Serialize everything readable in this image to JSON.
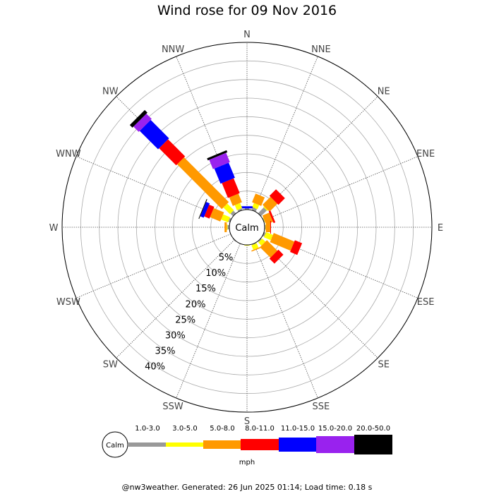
{
  "title": "Wind rose for 09 Nov 2016",
  "footer": "@nw3weather. Generated: 26 Jun 2025 01:14; Load time: 0.18 s",
  "chart_data": {
    "type": "windrose",
    "title": "Wind rose for 09 Nov 2016",
    "directions": [
      "N",
      "NNE",
      "NE",
      "ENE",
      "E",
      "ESE",
      "SE",
      "SSE",
      "S",
      "SSW",
      "SW",
      "WSW",
      "W",
      "WNW",
      "NW",
      "NNW"
    ],
    "radial_ticks": [
      "5%",
      "10%",
      "15%",
      "20%",
      "25%",
      "30%",
      "35%",
      "40%"
    ],
    "radial_max": 45,
    "calm_label": "Calm",
    "speed_unit": "mph",
    "speed_bins": [
      {
        "label": "1.0-3.0",
        "color": "#999999"
      },
      {
        "label": "3.0-5.0",
        "color": "#ffff00"
      },
      {
        "label": "5.0-8.0",
        "color": "#ff9900"
      },
      {
        "label": "8.0-11.0",
        "color": "#ff0000"
      },
      {
        "label": "11.0-15.0",
        "color": "#0000ff"
      },
      {
        "label": "15.0-20.0",
        "color": "#9922ee"
      },
      {
        "label": "20.0-50.0",
        "color": "#000000"
      }
    ],
    "bar_widths": [
      0,
      1,
      2,
      3,
      4,
      5,
      6
    ],
    "series": [
      {
        "direction": "N",
        "cumulative": [
          0.3,
          0.3,
          0.3,
          0.3,
          0.9,
          0.9,
          0.9
        ]
      },
      {
        "direction": "NNE",
        "cumulative": [
          0.8,
          2.0,
          4.5,
          4.5,
          4.5,
          4.5,
          4.5
        ]
      },
      {
        "direction": "NE",
        "cumulative": [
          2.2,
          2.5,
          5.5,
          8.0,
          8.0,
          8.0,
          8.0
        ]
      },
      {
        "direction": "ENE",
        "cumulative": [
          0.2,
          0.3,
          2.3,
          2.8,
          2.8,
          2.8,
          2.8
        ]
      },
      {
        "direction": "E",
        "cumulative": [
          0.2,
          0.3,
          1.5,
          1.7,
          1.7,
          1.7,
          1.7
        ]
      },
      {
        "direction": "ESE",
        "cumulative": [
          0.5,
          2.5,
          8.5,
          10.6,
          10.6,
          10.6,
          10.6
        ]
      },
      {
        "direction": "SE",
        "cumulative": [
          0.3,
          1.5,
          5.5,
          7.4,
          7.4,
          7.4,
          7.4
        ]
      },
      {
        "direction": "SSE",
        "cumulative": [
          0.2,
          1.5,
          1.8,
          1.8,
          1.8,
          1.8,
          1.8
        ]
      },
      {
        "direction": "S",
        "cumulative": [
          0.1,
          0.2,
          0.2,
          0.2,
          0.2,
          0.2,
          0.2
        ]
      },
      {
        "direction": "SSW",
        "cumulative": [
          0.1,
          0.1,
          0.1,
          0.1,
          0.1,
          0.1,
          0.1
        ]
      },
      {
        "direction": "SW",
        "cumulative": [
          0.2,
          0.2,
          0.2,
          0.2,
          0.2,
          0.2,
          0.2
        ]
      },
      {
        "direction": "WSW",
        "cumulative": [
          0.1,
          0.1,
          0.1,
          0.1,
          0.1,
          0.1,
          0.1
        ]
      },
      {
        "direction": "W",
        "cumulative": [
          0.5,
          0.7,
          1.3,
          1.3,
          1.3,
          1.3,
          1.3
        ]
      },
      {
        "direction": "WNW",
        "cumulative": [
          0.5,
          2.5,
          5.5,
          7.0,
          8.0,
          8.0,
          8.2
        ]
      },
      {
        "direction": "NW",
        "cumulative": [
          1.0,
          3.5,
          20.5,
          27.0,
          34.0,
          36.0,
          37.0
        ]
      },
      {
        "direction": "NNW",
        "cumulative": [
          0.5,
          2.0,
          4.5,
          8.8,
          13.2,
          15.9,
          16.5
        ]
      }
    ]
  }
}
